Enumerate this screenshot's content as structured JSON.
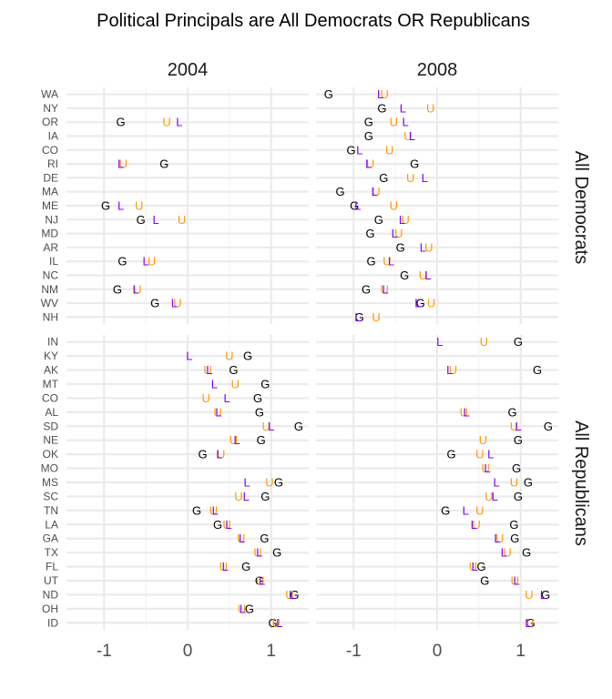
{
  "chart_data": {
    "type": "scatter",
    "title": "Political Principals are All Democrats OR Republicans",
    "facet_columns": [
      "2004",
      "2008"
    ],
    "facet_rows": [
      "All Democrats",
      "All Republicans"
    ],
    "x_ticks": [
      "-1",
      "0",
      "1"
    ],
    "xlim": [
      -1.45,
      1.45
    ],
    "grid": true,
    "legend": "none",
    "markers": {
      "G": {
        "label": "G",
        "color": "#000000"
      },
      "L": {
        "label": "L",
        "color": "#8000ff"
      },
      "U": {
        "label": "U",
        "color": "#ff9900"
      }
    },
    "panels": [
      {
        "row": "All Democrats",
        "column": "2004",
        "states": [
          "WA",
          "NY",
          "OR",
          "IA",
          "CO",
          "RI",
          "DE",
          "MA",
          "ME",
          "NJ",
          "MD",
          "AR",
          "IL",
          "NC",
          "NM",
          "WV",
          "NH"
        ],
        "points": [
          {
            "state": "OR",
            "G": -0.8,
            "L": -0.1,
            "U": -0.25
          },
          {
            "state": "RI",
            "G": -0.28,
            "L": -0.8,
            "U": -0.77
          },
          {
            "state": "ME",
            "G": -0.98,
            "L": -0.8,
            "U": -0.58
          },
          {
            "state": "NJ",
            "G": -0.56,
            "L": -0.38,
            "U": -0.07
          },
          {
            "state": "IL",
            "G": -0.78,
            "L": -0.5,
            "U": -0.43
          },
          {
            "state": "NM",
            "G": -0.84,
            "L": -0.62,
            "U": -0.6
          },
          {
            "state": "WV",
            "G": -0.39,
            "L": -0.16,
            "U": -0.12
          }
        ]
      },
      {
        "row": "All Democrats",
        "column": "2008",
        "states": [
          "WA",
          "NY",
          "OR",
          "IA",
          "CO",
          "RI",
          "DE",
          "MA",
          "ME",
          "NJ",
          "MD",
          "AR",
          "IL",
          "NC",
          "NM",
          "WV",
          "NH"
        ],
        "points": [
          {
            "state": "WA",
            "G": -1.3,
            "L": -0.68,
            "U": -0.63
          },
          {
            "state": "NY",
            "G": -0.66,
            "L": -0.41,
            "U": -0.08
          },
          {
            "state": "OR",
            "G": -0.82,
            "L": -0.38,
            "U": -0.52
          },
          {
            "state": "IA",
            "G": -0.82,
            "L": -0.3,
            "U": -0.35
          },
          {
            "state": "CO",
            "G": -1.03,
            "L": -0.93,
            "U": -0.57
          },
          {
            "state": "RI",
            "G": -0.27,
            "L": -0.82,
            "U": -0.8
          },
          {
            "state": "DE",
            "G": -0.64,
            "L": -0.15,
            "U": -0.32
          },
          {
            "state": "MA",
            "G": -1.16,
            "L": -0.75,
            "U": -0.73
          },
          {
            "state": "ME",
            "G": -0.99,
            "L": -0.95,
            "U": -0.52
          },
          {
            "state": "NJ",
            "G": -0.7,
            "L": -0.42,
            "U": -0.38
          },
          {
            "state": "MD",
            "G": -0.8,
            "L": -0.51,
            "U": -0.46
          },
          {
            "state": "AR",
            "G": -0.44,
            "L": -0.17,
            "U": -0.1
          },
          {
            "state": "IL",
            "G": -0.79,
            "L": -0.55,
            "U": -0.6
          },
          {
            "state": "NC",
            "G": -0.39,
            "L": -0.11,
            "U": -0.17
          },
          {
            "state": "NM",
            "G": -0.85,
            "L": -0.62,
            "U": -0.63
          },
          {
            "state": "WV",
            "G": -0.2,
            "L": -0.23,
            "U": -0.07
          },
          {
            "state": "NH",
            "G": -0.93,
            "L": -0.95,
            "U": -0.73
          }
        ]
      },
      {
        "row": "All Republicans",
        "column": "2004",
        "states": [
          "IN",
          "KY",
          "AK",
          "MT",
          "CO",
          "AL",
          "SD",
          "NE",
          "OK",
          "MO",
          "MS",
          "SC",
          "TN",
          "LA",
          "GA",
          "TX",
          "FL",
          "UT",
          "ND",
          "OH",
          "ID"
        ],
        "points": [
          {
            "state": "KY",
            "G": 0.72,
            "L": 0.02,
            "U": 0.5
          },
          {
            "state": "AK",
            "G": 0.55,
            "L": 0.26,
            "U": 0.24
          },
          {
            "state": "MT",
            "G": 0.93,
            "L": 0.32,
            "U": 0.57
          },
          {
            "state": "CO",
            "G": 0.84,
            "L": 0.47,
            "U": 0.22
          },
          {
            "state": "AL",
            "G": 0.86,
            "L": 0.37,
            "U": 0.36
          },
          {
            "state": "SD",
            "G": 1.33,
            "L": 1.0,
            "U": 0.94
          },
          {
            "state": "NE",
            "G": 0.88,
            "L": 0.59,
            "U": 0.55
          },
          {
            "state": "OK",
            "G": 0.18,
            "L": 0.38,
            "U": 0.4
          },
          {
            "state": "MS",
            "G": 1.09,
            "L": 0.71,
            "U": 0.98
          },
          {
            "state": "SC",
            "G": 0.93,
            "L": 0.7,
            "U": 0.61
          },
          {
            "state": "TN",
            "G": 0.11,
            "L": 0.33,
            "U": 0.31
          },
          {
            "state": "LA",
            "G": 0.36,
            "L": 0.49,
            "U": 0.47
          },
          {
            "state": "GA",
            "G": 0.92,
            "L": 0.65,
            "U": 0.64
          },
          {
            "state": "TX",
            "G": 1.07,
            "L": 0.86,
            "U": 0.84
          },
          {
            "state": "FL",
            "G": 0.7,
            "L": 0.45,
            "U": 0.43
          },
          {
            "state": "UT",
            "G": 0.86,
            "L": 0.89,
            "U": 0.87
          },
          {
            "state": "ND",
            "G": 1.28,
            "L": 1.25,
            "U": 1.22
          },
          {
            "state": "OH",
            "G": 0.74,
            "L": 0.66,
            "U": 0.65
          },
          {
            "state": "ID",
            "G": 1.02,
            "L": 1.1,
            "U": 1.06
          }
        ]
      },
      {
        "row": "All Republicans",
        "column": "2008",
        "states": [
          "IN",
          "KY",
          "AK",
          "MT",
          "CO",
          "AL",
          "SD",
          "NE",
          "OK",
          "MO",
          "MS",
          "SC",
          "TN",
          "LA",
          "GA",
          "TX",
          "FL",
          "UT",
          "ND",
          "OH",
          "ID"
        ],
        "points": [
          {
            "state": "IN",
            "G": 0.97,
            "L": 0.03,
            "U": 0.56
          },
          {
            "state": "AK",
            "G": 1.2,
            "L": 0.15,
            "U": 0.19
          },
          {
            "state": "AL",
            "G": 0.9,
            "L": 0.35,
            "U": 0.32
          },
          {
            "state": "SD",
            "G": 1.33,
            "L": 0.97,
            "U": 0.92
          },
          {
            "state": "NE",
            "G": 0.97,
            "L": null,
            "U": 0.55
          },
          {
            "state": "OK",
            "G": 0.17,
            "L": 0.64,
            "U": 0.51
          },
          {
            "state": "MO",
            "G": 0.95,
            "L": 0.6,
            "U": 0.58
          },
          {
            "state": "MS",
            "G": 1.09,
            "L": 0.71,
            "U": 0.92
          },
          {
            "state": "SC",
            "G": 0.97,
            "L": 0.69,
            "U": 0.62
          },
          {
            "state": "TN",
            "G": 0.1,
            "L": 0.34,
            "U": 0.51
          },
          {
            "state": "LA",
            "G": 0.92,
            "L": 0.44,
            "U": 0.47
          },
          {
            "state": "GA",
            "G": 0.93,
            "L": 0.72,
            "U": 0.75
          },
          {
            "state": "TX",
            "G": 1.07,
            "L": 0.8,
            "U": 0.84
          },
          {
            "state": "FL",
            "G": 0.53,
            "L": 0.45,
            "U": 0.43
          },
          {
            "state": "UT",
            "G": 0.57,
            "L": 0.95,
            "U": 0.93
          },
          {
            "state": "ND",
            "G": 1.3,
            "L": 1.27,
            "U": 1.1
          },
          {
            "state": "ID",
            "G": 1.12,
            "L": 1.09,
            "U": 1.11
          }
        ]
      }
    ]
  }
}
